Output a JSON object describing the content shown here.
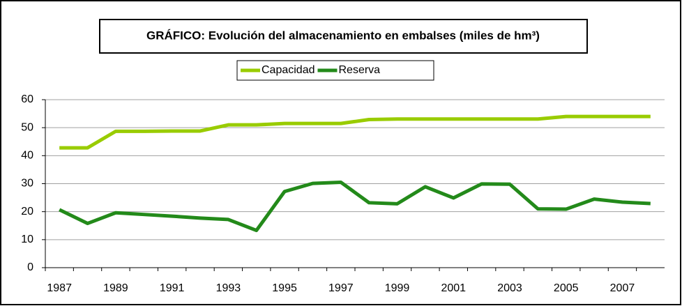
{
  "chart_data": {
    "type": "line",
    "title": "GRÁFICO: Evolución del almacenamiento en embalses (miles de hm³)",
    "categories": [
      "1987",
      null,
      "1989",
      null,
      "1991",
      null,
      "1993",
      null,
      "1995",
      null,
      "1997",
      null,
      "1999",
      null,
      "2001",
      null,
      "2003",
      null,
      "2005",
      null,
      "2007",
      null
    ],
    "series": [
      {
        "name": "Capacidad",
        "color": "#99cc00",
        "values": [
          42.8,
          42.8,
          48.7,
          48.7,
          48.8,
          48.8,
          51,
          51,
          51.5,
          51.5,
          51.5,
          52.9,
          53.1,
          53.1,
          53.1,
          53.1,
          53.1,
          53.1,
          54,
          54,
          54,
          54
        ]
      },
      {
        "name": "Reserva",
        "color": "#238a1a",
        "values": [
          20.7,
          15.8,
          19.6,
          19,
          18.4,
          17.7,
          17.2,
          13.3,
          27.2,
          30.1,
          30.5,
          23.2,
          22.8,
          28.9,
          24.9,
          29.9,
          29.8,
          21,
          20.9,
          24.5,
          23.4,
          22.9
        ]
      }
    ],
    "ylim": [
      0,
      60
    ],
    "yticks": [
      0,
      10,
      20,
      30,
      40,
      50,
      60
    ],
    "grid": true
  }
}
